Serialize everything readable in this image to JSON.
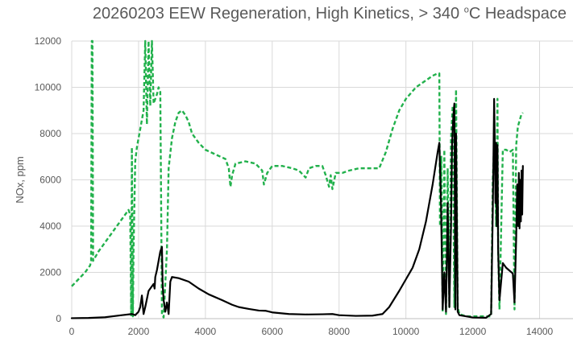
{
  "chart_data": {
    "type": "line",
    "title_parts": {
      "before": "20260203 EEW Regeneration, High Kinetics, > 340 ",
      "superscript": "o",
      "after": "C Headspace"
    },
    "xlabel": "",
    "ylabel": "NOx, ppm",
    "xlim": [
      0,
      15000
    ],
    "ylim": [
      0,
      12000
    ],
    "x_ticks": [
      0,
      2000,
      4000,
      6000,
      8000,
      10000,
      12000,
      14000
    ],
    "y_ticks": [
      0,
      2000,
      4000,
      6000,
      8000,
      10000,
      12000
    ],
    "x_tick_labels": [
      "0",
      "2000",
      "4000",
      "6000",
      "8000",
      "10000",
      "12000",
      "14000"
    ],
    "y_tick_labels": [
      "0",
      "2000",
      "4000",
      "6000",
      "8000",
      "10000",
      "12000"
    ],
    "grid": true,
    "legend": "none",
    "series": [
      {
        "color": "#000000",
        "style": "solid",
        "points": [
          [
            0,
            20
          ],
          [
            500,
            30
          ],
          [
            1000,
            60
          ],
          [
            1500,
            150
          ],
          [
            1800,
            200
          ],
          [
            1900,
            150
          ],
          [
            2000,
            300
          ],
          [
            2050,
            500
          ],
          [
            2100,
            1000
          ],
          [
            2150,
            200
          ],
          [
            2200,
            500
          ],
          [
            2300,
            1200
          ],
          [
            2400,
            1400
          ],
          [
            2450,
            1500
          ],
          [
            2480,
            1300
          ],
          [
            2500,
            1800
          ],
          [
            2550,
            2100
          ],
          [
            2600,
            2500
          ],
          [
            2650,
            2900
          ],
          [
            2700,
            3100
          ],
          [
            2720,
            1500
          ],
          [
            2750,
            800
          ],
          [
            2800,
            300
          ],
          [
            2850,
            700
          ],
          [
            2900,
            200
          ],
          [
            2950,
            1600
          ],
          [
            3000,
            1800
          ],
          [
            3200,
            1750
          ],
          [
            3500,
            1600
          ],
          [
            3800,
            1300
          ],
          [
            4100,
            1050
          ],
          [
            4500,
            800
          ],
          [
            4800,
            600
          ],
          [
            5000,
            500
          ],
          [
            5300,
            420
          ],
          [
            5600,
            350
          ],
          [
            5800,
            340
          ],
          [
            6000,
            270
          ],
          [
            6500,
            200
          ],
          [
            7000,
            180
          ],
          [
            7500,
            190
          ],
          [
            7800,
            200
          ],
          [
            8000,
            150
          ],
          [
            8500,
            120
          ],
          [
            9000,
            130
          ],
          [
            9300,
            200
          ],
          [
            9500,
            500
          ],
          [
            9800,
            1200
          ],
          [
            10000,
            1700
          ],
          [
            10200,
            2200
          ],
          [
            10400,
            3000
          ],
          [
            10600,
            4200
          ],
          [
            10800,
            5800
          ],
          [
            10950,
            7200
          ],
          [
            11000,
            7600
          ],
          [
            11050,
            5000
          ],
          [
            11100,
            400
          ],
          [
            11150,
            2000
          ],
          [
            11200,
            300
          ],
          [
            11250,
            5000
          ],
          [
            11300,
            500
          ],
          [
            11350,
            4000
          ],
          [
            11380,
            7500
          ],
          [
            11420,
            8800
          ],
          [
            11450,
            9300
          ],
          [
            11480,
            400
          ],
          [
            11500,
            8000
          ],
          [
            11550,
            300
          ],
          [
            11600,
            150
          ],
          [
            12000,
            50
          ],
          [
            12400,
            40
          ],
          [
            12550,
            200
          ],
          [
            12600,
            4700
          ],
          [
            12620,
            7000
          ],
          [
            12640,
            9500
          ],
          [
            12660,
            7500
          ],
          [
            12680,
            5000
          ],
          [
            12700,
            7600
          ],
          [
            12720,
            4000
          ],
          [
            12740,
            7500
          ],
          [
            12760,
            3000
          ],
          [
            12800,
            800
          ],
          [
            12900,
            2400
          ],
          [
            13000,
            2200
          ],
          [
            13200,
            1950
          ],
          [
            13250,
            700
          ],
          [
            13300,
            3500
          ],
          [
            13330,
            5800
          ],
          [
            13360,
            4000
          ],
          [
            13380,
            6300
          ],
          [
            13400,
            3900
          ],
          [
            13420,
            6000
          ],
          [
            13440,
            4200
          ],
          [
            13460,
            6400
          ],
          [
            13480,
            4500
          ],
          [
            13500,
            6600
          ]
        ]
      },
      {
        "color": "#22b14c",
        "style": "dashed",
        "points": [
          [
            0,
            1400
          ],
          [
            200,
            1700
          ],
          [
            400,
            2000
          ],
          [
            550,
            2300
          ],
          [
            580,
            2500
          ],
          [
            600,
            12000
          ],
          [
            620,
            12000
          ],
          [
            640,
            2500
          ],
          [
            800,
            2900
          ],
          [
            1000,
            3300
          ],
          [
            1300,
            3900
          ],
          [
            1500,
            4300
          ],
          [
            1700,
            4700
          ],
          [
            1750,
            4500
          ],
          [
            1780,
            100
          ],
          [
            1800,
            7400
          ],
          [
            1830,
            100
          ],
          [
            1850,
            3000
          ],
          [
            1900,
            6800
          ],
          [
            1950,
            7400
          ],
          [
            2000,
            7800
          ],
          [
            2050,
            8200
          ],
          [
            2100,
            8600
          ],
          [
            2150,
            9000
          ],
          [
            2200,
            12000
          ],
          [
            2250,
            8400
          ],
          [
            2300,
            12000
          ],
          [
            2350,
            9200
          ],
          [
            2400,
            12000
          ],
          [
            2450,
            9300
          ],
          [
            2500,
            9500
          ],
          [
            2550,
            9700
          ],
          [
            2600,
            10000
          ],
          [
            2650,
            9800
          ],
          [
            2700,
            200
          ],
          [
            2750,
            50
          ],
          [
            2850,
            3000
          ],
          [
            2900,
            6500
          ],
          [
            3000,
            7800
          ],
          [
            3100,
            8500
          ],
          [
            3200,
            8900
          ],
          [
            3300,
            9000
          ],
          [
            3400,
            8800
          ],
          [
            3500,
            8500
          ],
          [
            3600,
            8000
          ],
          [
            3800,
            7600
          ],
          [
            4000,
            7300
          ],
          [
            4300,
            7100
          ],
          [
            4600,
            6900
          ],
          [
            4700,
            6500
          ],
          [
            4750,
            5700
          ],
          [
            4800,
            6200
          ],
          [
            4900,
            6700
          ],
          [
            5200,
            6800
          ],
          [
            5500,
            6700
          ],
          [
            5700,
            6400
          ],
          [
            5750,
            5800
          ],
          [
            5850,
            6300
          ],
          [
            6000,
            6600
          ],
          [
            6300,
            6600
          ],
          [
            6600,
            6500
          ],
          [
            6800,
            6400
          ],
          [
            7000,
            6100
          ],
          [
            7100,
            6500
          ],
          [
            7300,
            6600
          ],
          [
            7500,
            6600
          ],
          [
            7600,
            6200
          ],
          [
            7700,
            5700
          ],
          [
            7750,
            6200
          ],
          [
            7800,
            5600
          ],
          [
            7900,
            6300
          ],
          [
            8100,
            6300
          ],
          [
            8300,
            6400
          ],
          [
            8600,
            6500
          ],
          [
            8900,
            6500
          ],
          [
            9200,
            6500
          ],
          [
            9400,
            7200
          ],
          [
            9600,
            8200
          ],
          [
            9800,
            9000
          ],
          [
            10000,
            9500
          ],
          [
            10300,
            10000
          ],
          [
            10600,
            10300
          ],
          [
            10800,
            10500
          ],
          [
            10950,
            10600
          ],
          [
            11000,
            10600
          ],
          [
            11020,
            4000
          ],
          [
            11060,
            7000
          ],
          [
            11100,
            300
          ],
          [
            11150,
            7300
          ],
          [
            11200,
            200
          ],
          [
            11250,
            6500
          ],
          [
            11300,
            500
          ],
          [
            11350,
            7800
          ],
          [
            11400,
            9200
          ],
          [
            11450,
            500
          ],
          [
            11500,
            9900
          ],
          [
            11550,
            500
          ],
          [
            11600,
            200
          ],
          [
            11800,
            100
          ],
          [
            12000,
            100
          ],
          [
            12400,
            100
          ],
          [
            12550,
            100
          ],
          [
            12600,
            6000
          ],
          [
            12650,
            8000
          ],
          [
            12700,
            4000
          ],
          [
            12720,
            7000
          ],
          [
            12740,
            9500
          ],
          [
            12760,
            3000
          ],
          [
            12800,
            400
          ],
          [
            12900,
            7300
          ],
          [
            13000,
            7300
          ],
          [
            13100,
            7200
          ],
          [
            13200,
            7300
          ],
          [
            13250,
            400
          ],
          [
            13300,
            7500
          ],
          [
            13350,
            8300
          ],
          [
            13450,
            8800
          ],
          [
            13500,
            8900
          ]
        ]
      }
    ]
  }
}
